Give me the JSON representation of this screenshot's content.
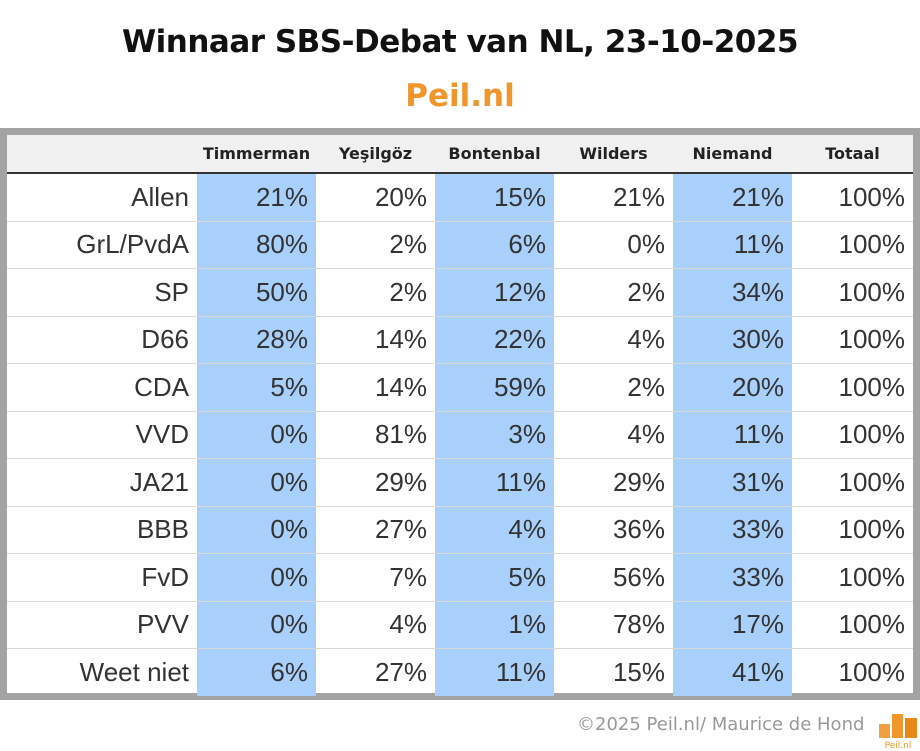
{
  "title": "Winnaar SBS-Debat van NL, 23-10-2025",
  "subtitle": "Peil.nl",
  "footer": "©2025 Peil.nl/ Maurice de Hond",
  "logo_text": "Peil.nl",
  "colors": {
    "highlight": "#a9d0fb",
    "brand": "#f0962a"
  },
  "chart_data": {
    "type": "table",
    "columns": [
      "",
      "Timmerman",
      "Yeşilgöz",
      "Bontenbal",
      "Wilders",
      "Niemand",
      "Totaal"
    ],
    "highlighted_columns": [
      "Timmerman",
      "Bontenbal",
      "Niemand"
    ],
    "rows": [
      {
        "label": "Allen",
        "values": [
          "21%",
          "20%",
          "15%",
          "21%",
          "21%",
          "100%"
        ]
      },
      {
        "label": "GrL/PvdA",
        "values": [
          "80%",
          "2%",
          "6%",
          "0%",
          "11%",
          "100%"
        ]
      },
      {
        "label": "SP",
        "values": [
          "50%",
          "2%",
          "12%",
          "2%",
          "34%",
          "100%"
        ]
      },
      {
        "label": "D66",
        "values": [
          "28%",
          "14%",
          "22%",
          "4%",
          "30%",
          "100%"
        ]
      },
      {
        "label": "CDA",
        "values": [
          "5%",
          "14%",
          "59%",
          "2%",
          "20%",
          "100%"
        ]
      },
      {
        "label": "VVD",
        "values": [
          "0%",
          "81%",
          "3%",
          "4%",
          "11%",
          "100%"
        ]
      },
      {
        "label": "JA21",
        "values": [
          "0%",
          "29%",
          "11%",
          "29%",
          "31%",
          "100%"
        ]
      },
      {
        "label": "BBB",
        "values": [
          "0%",
          "27%",
          "4%",
          "36%",
          "33%",
          "100%"
        ]
      },
      {
        "label": "FvD",
        "values": [
          "0%",
          "7%",
          "5%",
          "56%",
          "33%",
          "100%"
        ]
      },
      {
        "label": "PVV",
        "values": [
          "0%",
          "4%",
          "1%",
          "78%",
          "17%",
          "100%"
        ]
      },
      {
        "label": "Weet niet",
        "values": [
          "6%",
          "27%",
          "11%",
          "15%",
          "41%",
          "100%"
        ]
      }
    ]
  }
}
